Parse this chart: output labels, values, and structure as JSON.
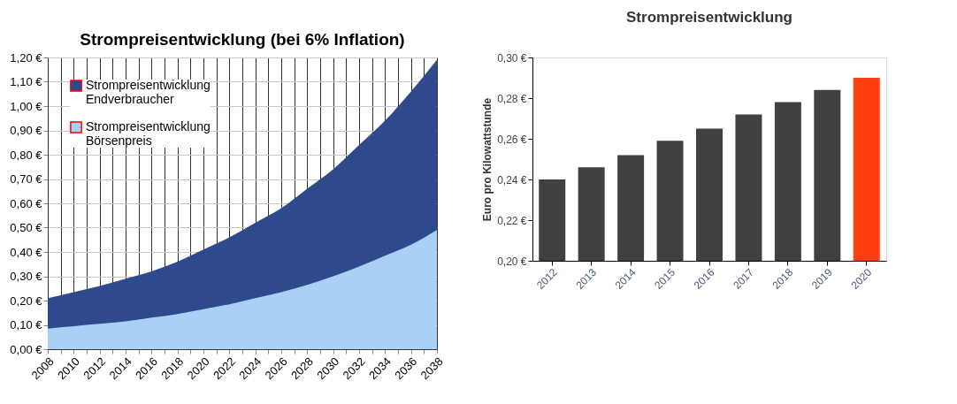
{
  "chart_data": [
    {
      "type": "area",
      "title": "Strompreisentwicklung (bei 6% Inflation)",
      "x": [
        2008,
        2010,
        2012,
        2014,
        2016,
        2018,
        2020,
        2022,
        2024,
        2026,
        2028,
        2030,
        2032,
        2034,
        2036,
        2038
      ],
      "series": [
        {
          "name": "Strompreisentwicklung Endverbraucher",
          "color": "#2e4a8c",
          "values": [
            0.21,
            0.235,
            0.26,
            0.29,
            0.32,
            0.36,
            0.41,
            0.46,
            0.52,
            0.58,
            0.66,
            0.74,
            0.84,
            0.94,
            1.06,
            1.19
          ]
        },
        {
          "name": "Strompreisentwicklung Börsenpreis",
          "color": "#a9d1f5",
          "values": [
            0.085,
            0.095,
            0.105,
            0.115,
            0.13,
            0.145,
            0.165,
            0.185,
            0.21,
            0.235,
            0.265,
            0.3,
            0.34,
            0.385,
            0.43,
            0.49
          ]
        }
      ],
      "xlim": [
        2008,
        2038
      ],
      "xticks": [
        2008,
        {
          "value": 2009,
          "label": null
        },
        2010,
        {
          "value": 2011,
          "label": null
        },
        2012,
        {
          "value": 2013,
          "label": null
        },
        2014,
        {
          "value": 2015,
          "label": null
        },
        2016,
        {
          "value": 2017,
          "label": null
        },
        2018,
        {
          "value": 2019,
          "label": null
        },
        2020,
        {
          "value": 2021,
          "label": null
        },
        2022,
        {
          "value": 2023,
          "label": null
        },
        2024,
        {
          "value": 2025,
          "label": null
        },
        2026,
        {
          "value": 2027,
          "label": null
        },
        2028,
        {
          "value": 2029,
          "label": null
        },
        2030,
        {
          "value": 2031,
          "label": null
        },
        2032,
        {
          "value": 2033,
          "label": null
        },
        2034,
        {
          "value": 2035,
          "label": null
        },
        2036,
        {
          "value": 2037,
          "label": null
        },
        2038
      ],
      "ylim": [
        0,
        1.2
      ],
      "yticks": [
        {
          "value": 0,
          "label": "0,00 €"
        },
        {
          "value": 0.1,
          "label": "0,10 €"
        },
        {
          "value": 0.2,
          "label": "0,20 €"
        },
        {
          "value": 0.3,
          "label": "0,30 €"
        },
        {
          "value": 0.4,
          "label": "0,40 €"
        },
        {
          "value": 0.5,
          "label": "0,50 €"
        },
        {
          "value": 0.6,
          "label": "0,60 €"
        },
        {
          "value": 0.7,
          "label": "0,70 €"
        },
        {
          "value": 0.8,
          "label": "0,80 €"
        },
        {
          "value": 0.9,
          "label": "0,90 €"
        },
        {
          "value": 1.0,
          "label": "1,00 €"
        },
        {
          "value": 1.1,
          "label": "1,10 €"
        },
        {
          "value": 1.2,
          "label": "1,20 €"
        }
      ],
      "grid": true,
      "legend": "top left"
    },
    {
      "type": "bar",
      "title": "Strompreisentwicklung",
      "ylabel": "Euro pro Kilowattstunde",
      "categories": [
        "2012",
        "2013",
        "2014",
        "2015",
        "2016",
        "2017",
        "2018",
        "2019",
        "2020"
      ],
      "values": [
        0.24,
        0.246,
        0.252,
        0.259,
        0.265,
        0.272,
        0.278,
        0.284,
        0.29
      ],
      "colors": [
        "#404040",
        "#404040",
        "#404040",
        "#404040",
        "#404040",
        "#404040",
        "#404040",
        "#404040",
        "#ff3f0f"
      ],
      "ylim": [
        0.2,
        0.3
      ],
      "yticks": [
        {
          "value": 0.2,
          "label": "0,20 €"
        },
        {
          "value": 0.22,
          "label": "0,22 €"
        },
        {
          "value": 0.24,
          "label": "0,24 €"
        },
        {
          "value": 0.26,
          "label": "0,26 €"
        },
        {
          "value": 0.28,
          "label": "0,28 €"
        },
        {
          "value": 0.3,
          "label": "0,30 €"
        }
      ],
      "grid": false,
      "legend": false
    }
  ]
}
